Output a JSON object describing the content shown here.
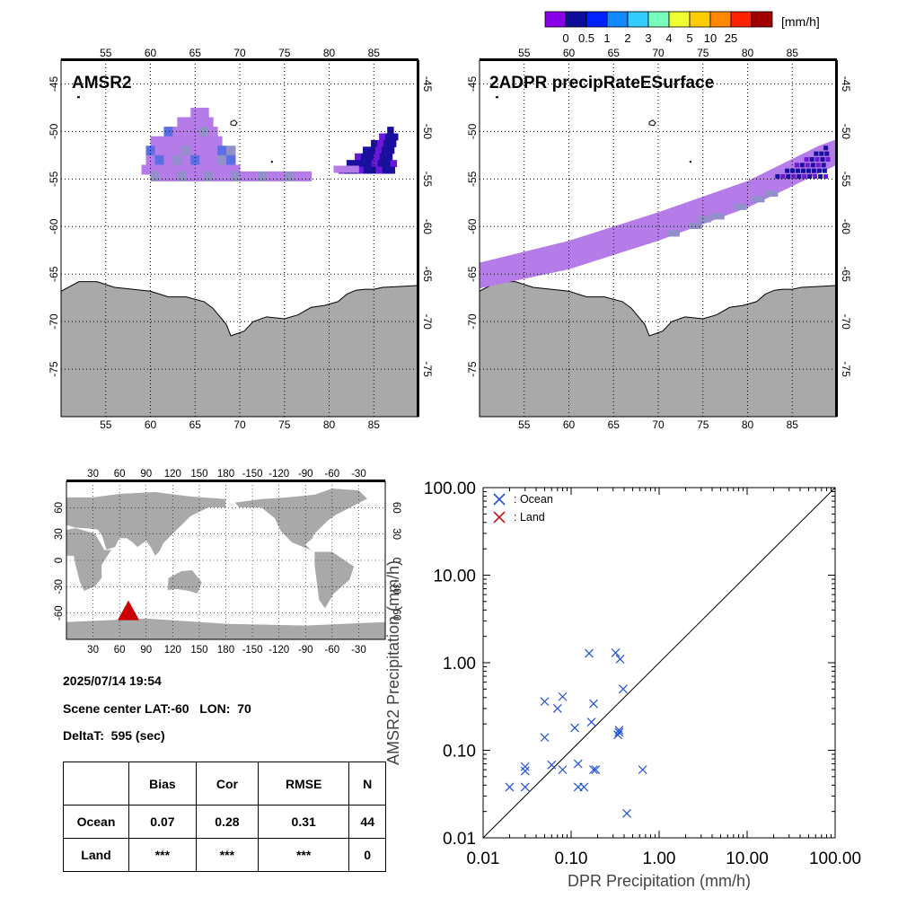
{
  "colorbar": {
    "unit": "[mm/h]",
    "labels": [
      "0",
      "0.5",
      "1",
      "2",
      "3",
      "4",
      "5",
      "10",
      "25"
    ],
    "colors": [
      "#8a00e6",
      "#0d0d9a",
      "#0022ff",
      "#1188ff",
      "#33ccff",
      "#77ffbb",
      "#eeff33",
      "#ffcc00",
      "#ff8800",
      "#ff2200",
      "#a00000"
    ]
  },
  "map_left": {
    "title": "AMSR2"
  },
  "map_right": {
    "title": "2ADPR precipRateESurface"
  },
  "map_axes": {
    "lon_ticks": [
      "55",
      "60",
      "65",
      "70",
      "75",
      "80",
      "85"
    ],
    "lat_ticks": [
      "-45",
      "-50",
      "-55",
      "-60",
      "-65",
      "-70",
      "-75"
    ]
  },
  "globe": {
    "lon_ticks": [
      "30",
      "60",
      "90",
      "120",
      "150",
      "180",
      "-150",
      "-120",
      "-90",
      "-60",
      "-30"
    ],
    "lat_ticks": [
      "60",
      "30",
      "0",
      "-30",
      "-60"
    ],
    "marker_color": "#cc0000"
  },
  "info": {
    "datetime": "2025/07/14 19:54",
    "scene_center": "Scene center LAT:-60   LON:  70",
    "delta_t": "DeltaT:  595 (sec)"
  },
  "stats_table": {
    "headers": [
      "Bias",
      "Cor",
      "RMSE",
      "N"
    ],
    "rows": [
      {
        "label": "Ocean",
        "values": [
          "0.07",
          "0.28",
          "0.31",
          "44"
        ]
      },
      {
        "label": "Land",
        "values": [
          "***",
          "***",
          "***",
          "0"
        ]
      }
    ]
  },
  "chart_data": {
    "type": "scatter",
    "xlabel": "DPR Precipitation (mm/h)",
    "ylabel": "AMSR2 Precipitation (mm/h)",
    "xscale": "log",
    "yscale": "log",
    "xlim": [
      0.01,
      100
    ],
    "ylim": [
      0.01,
      100
    ],
    "x_tick_labels": [
      "0.01",
      "0.10",
      "1.00",
      "10.00",
      "100.00"
    ],
    "y_tick_labels": [
      "0.01",
      "0.10",
      "1.00",
      "10.00",
      "100.00"
    ],
    "reference_line": "1:1",
    "legend_position": "top-left",
    "series": [
      {
        "name": ": Ocean",
        "color": "#1f4fd6",
        "points": [
          [
            0.02,
            0.038
          ],
          [
            0.03,
            0.038
          ],
          [
            0.03,
            0.058
          ],
          [
            0.03,
            0.065
          ],
          [
            0.05,
            0.14
          ],
          [
            0.05,
            0.36
          ],
          [
            0.06,
            0.068
          ],
          [
            0.07,
            0.3
          ],
          [
            0.08,
            0.41
          ],
          [
            0.08,
            0.06
          ],
          [
            0.11,
            0.18
          ],
          [
            0.12,
            0.038
          ],
          [
            0.12,
            0.07
          ],
          [
            0.14,
            0.038
          ],
          [
            0.16,
            1.28
          ],
          [
            0.17,
            0.21
          ],
          [
            0.18,
            0.34
          ],
          [
            0.18,
            0.06
          ],
          [
            0.19,
            0.06
          ],
          [
            0.32,
            1.3
          ],
          [
            0.34,
            0.15
          ],
          [
            0.35,
            0.17
          ],
          [
            0.35,
            0.16
          ],
          [
            0.36,
            1.1
          ],
          [
            0.39,
            0.5
          ],
          [
            0.43,
            0.019
          ],
          [
            0.65,
            0.06
          ]
        ]
      },
      {
        "name": ": Land",
        "color": "#c41a1a",
        "points": []
      }
    ]
  }
}
